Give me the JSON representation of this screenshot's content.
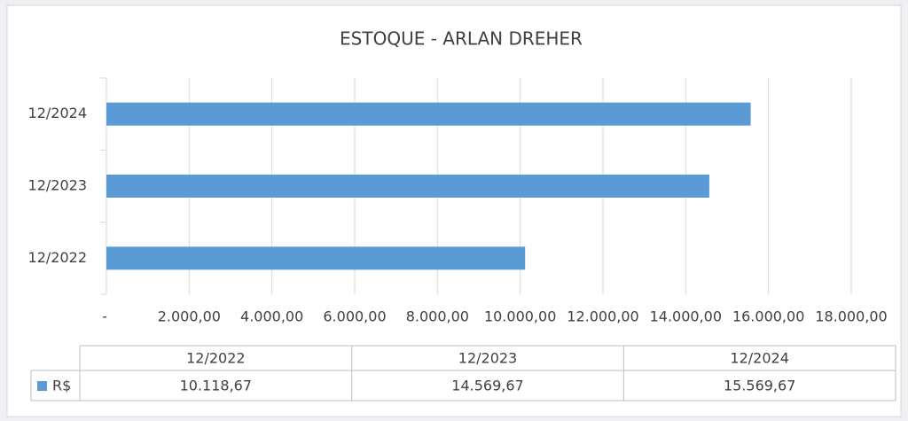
{
  "chart_data": {
    "type": "bar",
    "orientation": "horizontal",
    "title": "ESTOQUE - ARLAN DREHER",
    "categories": [
      "12/2022",
      "12/2023",
      "12/2024"
    ],
    "series": [
      {
        "name": "R$",
        "color": "#5b9bd5",
        "values": [
          10118.67,
          14569.67,
          15569.67
        ],
        "value_labels": [
          "10.118,67",
          "14.569,67",
          "15.569,67"
        ]
      }
    ],
    "xlim": [
      0,
      18000
    ],
    "xticks": [
      {
        "value": 0,
        "label": "-"
      },
      {
        "value": 2000,
        "label": "2.000,00"
      },
      {
        "value": 4000,
        "label": "4.000,00"
      },
      {
        "value": 6000,
        "label": "6.000,00"
      },
      {
        "value": 8000,
        "label": "8.000,00"
      },
      {
        "value": 10000,
        "label": "10.000,00"
      },
      {
        "value": 12000,
        "label": "12.000,00"
      },
      {
        "value": 14000,
        "label": "14.000,00"
      },
      {
        "value": 16000,
        "label": "16.000,00"
      },
      {
        "value": 18000,
        "label": "18.000,00"
      }
    ],
    "grid": true,
    "data_table": true
  }
}
